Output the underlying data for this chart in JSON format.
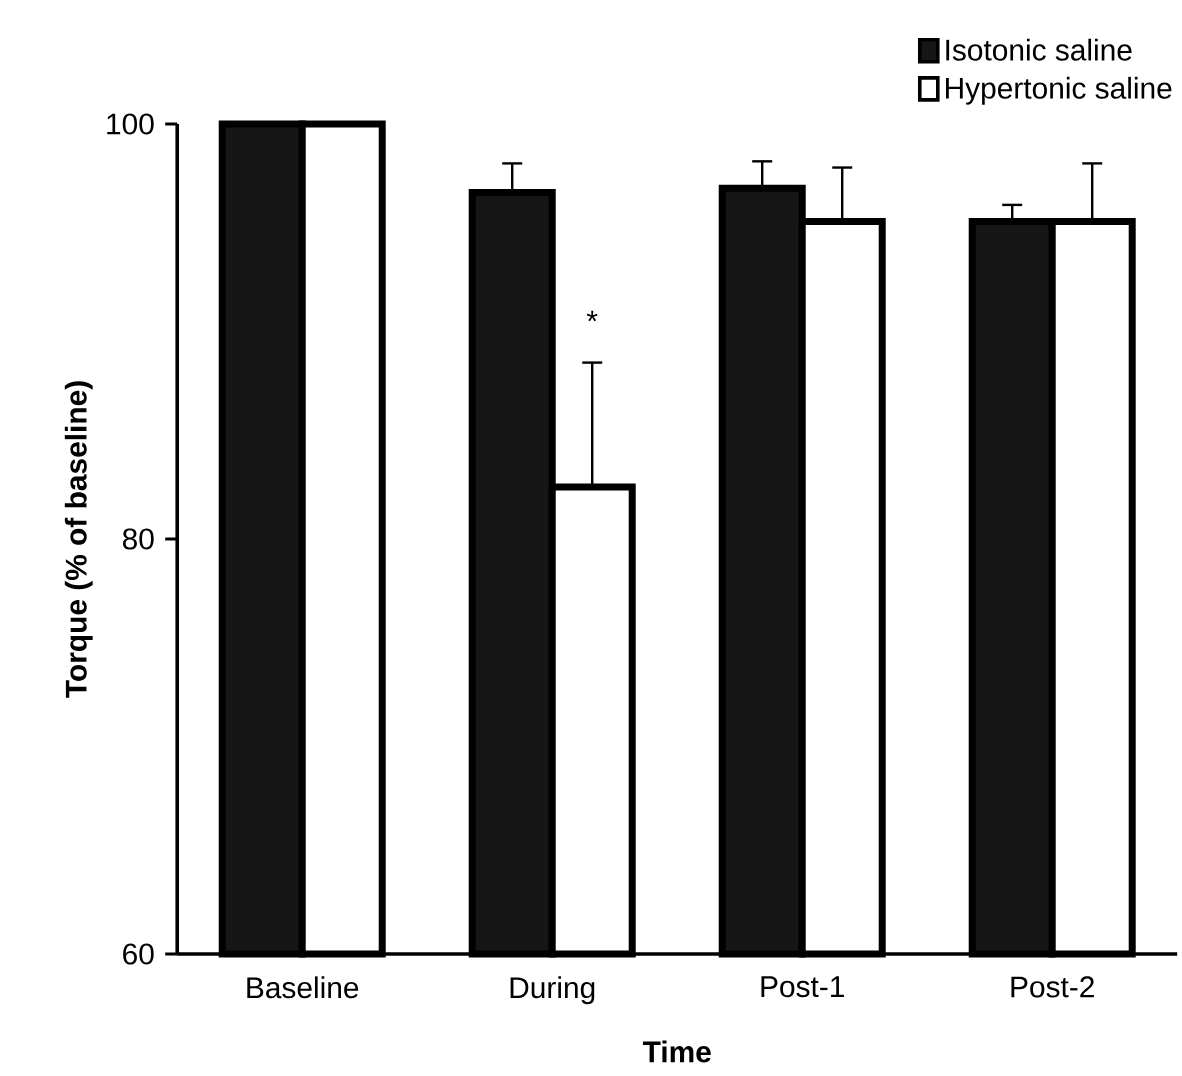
{
  "chart_data": {
    "type": "bar",
    "xlabel": "Time",
    "ylabel": "Torque (% of baseline)",
    "categories": [
      "Baseline",
      "During",
      "Post-1",
      "Post-2"
    ],
    "series": [
      {
        "name": "Isotonic saline",
        "color": "#161616",
        "values": [
          100,
          96.7,
          96.9,
          95.3
        ],
        "errors": [
          null,
          1.4,
          1.3,
          0.8
        ]
      },
      {
        "name": "Hypertonic saline",
        "color": "#ffffff",
        "values": [
          100,
          82.5,
          95.3,
          95.3
        ],
        "errors": [
          null,
          6.0,
          2.6,
          2.8
        ]
      }
    ],
    "ylim": [
      60,
      100
    ],
    "yticks": [
      60,
      80,
      100
    ],
    "legend": "top right",
    "annotations": [
      {
        "text": "*",
        "x": "During",
        "y": 90.5
      }
    ]
  }
}
